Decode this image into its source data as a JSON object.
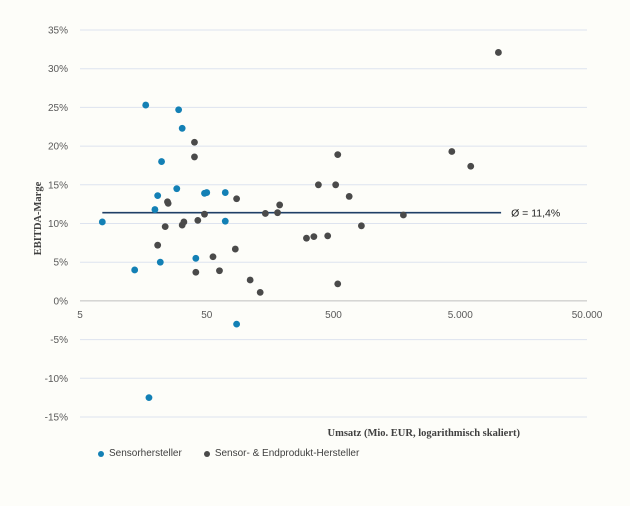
{
  "colors": {
    "sensor": "#1380b5",
    "endproduct": "#4a4a4a",
    "grid": "#dde3ef",
    "avg_line": "#1f3f66"
  },
  "chart_data": {
    "type": "scatter",
    "title": "",
    "xlabel": "Umsatz (Mio. EUR, logarithmisch skaliert)",
    "ylabel": "EBITDA-Marge",
    "xscale": "log",
    "xlim": [
      5,
      50000
    ],
    "ylim": [
      -0.15,
      0.35
    ],
    "x_ticks": [
      {
        "value": 5,
        "label": "5"
      },
      {
        "value": 50,
        "label": "50"
      },
      {
        "value": 500,
        "label": "500"
      },
      {
        "value": 5000,
        "label": "5.000"
      },
      {
        "value": 50000,
        "label": "50.000"
      }
    ],
    "y_ticks": [
      {
        "value": 0.35,
        "label": "35%"
      },
      {
        "value": 0.3,
        "label": "30%"
      },
      {
        "value": 0.25,
        "label": "25%"
      },
      {
        "value": 0.2,
        "label": "20%"
      },
      {
        "value": 0.15,
        "label": "15%"
      },
      {
        "value": 0.1,
        "label": "10%"
      },
      {
        "value": 0.05,
        "label": "5%"
      },
      {
        "value": 0.0,
        "label": "0%"
      },
      {
        "value": -0.05,
        "label": "-5%"
      },
      {
        "value": -0.1,
        "label": "-10%"
      },
      {
        "value": -0.15,
        "label": "-15%"
      }
    ],
    "average": {
      "value": 0.114,
      "label": "Ø = 11,4%",
      "x_range": [
        7.5,
        10500
      ]
    },
    "series": [
      {
        "name": "Sensorhersteller",
        "color_key": "sensor",
        "points": [
          [
            7.5,
            0.102
          ],
          [
            13.5,
            0.04
          ],
          [
            16.5,
            0.253
          ],
          [
            17.5,
            -0.125
          ],
          [
            19.5,
            0.118
          ],
          [
            20.5,
            0.136
          ],
          [
            21.5,
            0.05
          ],
          [
            22,
            0.18
          ],
          [
            29,
            0.145
          ],
          [
            30,
            0.247
          ],
          [
            32,
            0.223
          ],
          [
            41,
            0.055
          ],
          [
            48,
            0.139
          ],
          [
            50,
            0.14
          ],
          [
            70,
            0.14
          ],
          [
            70,
            0.103
          ],
          [
            86,
            -0.03
          ]
        ]
      },
      {
        "name": "Sensor- & Endprodukt-Hersteller",
        "color_key": "endproduct",
        "points": [
          [
            20.5,
            0.072
          ],
          [
            23.5,
            0.096
          ],
          [
            24.5,
            0.128
          ],
          [
            24.8,
            0.126
          ],
          [
            32,
            0.098
          ],
          [
            33,
            0.102
          ],
          [
            40,
            0.205
          ],
          [
            40,
            0.186
          ],
          [
            41,
            0.037
          ],
          [
            42.5,
            0.104
          ],
          [
            48,
            0.112
          ],
          [
            56,
            0.057
          ],
          [
            63,
            0.039
          ],
          [
            84,
            0.067
          ],
          [
            86,
            0.132
          ],
          [
            110,
            0.027
          ],
          [
            132,
            0.011
          ],
          [
            145,
            0.113
          ],
          [
            181,
            0.114
          ],
          [
            188,
            0.124
          ],
          [
            306,
            0.081
          ],
          [
            350,
            0.083
          ],
          [
            380,
            0.15
          ],
          [
            450,
            0.084
          ],
          [
            520,
            0.15
          ],
          [
            540,
            0.189
          ],
          [
            540,
            0.022
          ],
          [
            665,
            0.135
          ],
          [
            830,
            0.097
          ],
          [
            1780,
            0.111
          ],
          [
            4290,
            0.193
          ],
          [
            6050,
            0.174
          ],
          [
            10000,
            0.321
          ]
        ]
      }
    ],
    "legend": {
      "position": "bottom-left"
    }
  }
}
